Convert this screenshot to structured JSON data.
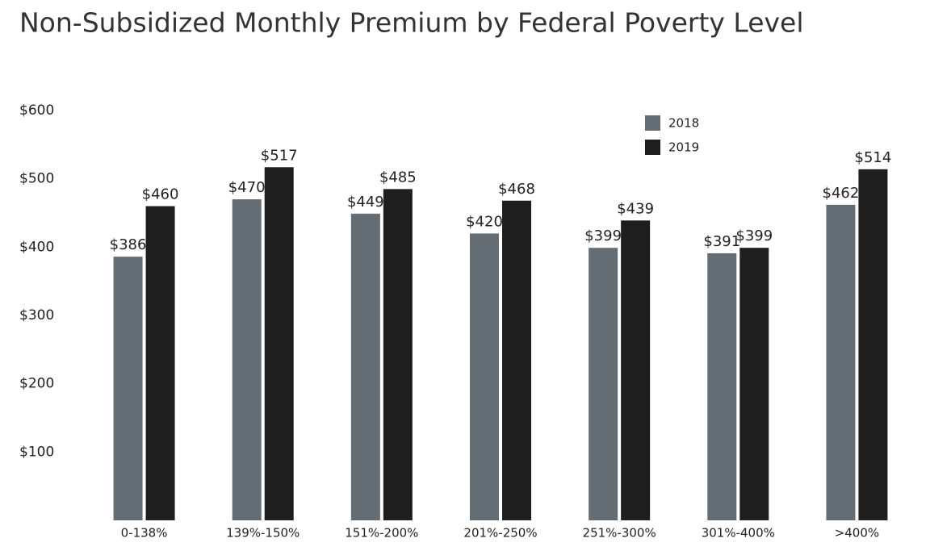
{
  "chart_data": {
    "type": "bar",
    "title": "Non-Subsidized Monthly Premium by Federal Poverty Level",
    "categories": [
      "0-138%",
      "139%-150%",
      "151%-200%",
      "201%-250%",
      "251%-300%",
      "301%-400%",
      ">400%"
    ],
    "series": [
      {
        "name": "2018",
        "color": "#646d73",
        "values": [
          386,
          470,
          449,
          420,
          399,
          391,
          462
        ],
        "value_labels": [
          "$386",
          "$470",
          "$449",
          "$420",
          "$399",
          "$391",
          "$462"
        ]
      },
      {
        "name": "2019",
        "color": "#1e1e1e",
        "values": [
          460,
          517,
          485,
          468,
          439,
          399,
          514
        ],
        "value_labels": [
          "$460",
          "$517",
          "$485",
          "$468",
          "$439",
          "$399",
          "$514"
        ]
      }
    ],
    "ylim": [
      0,
      600
    ],
    "yticks": [
      {
        "value": 100,
        "label": "$100"
      },
      {
        "value": 200,
        "label": "$200"
      },
      {
        "value": 300,
        "label": "$300"
      },
      {
        "value": 400,
        "label": "$400"
      },
      {
        "value": 500,
        "label": "$500"
      },
      {
        "value": 600,
        "label": "$600"
      }
    ],
    "grid": false
  }
}
